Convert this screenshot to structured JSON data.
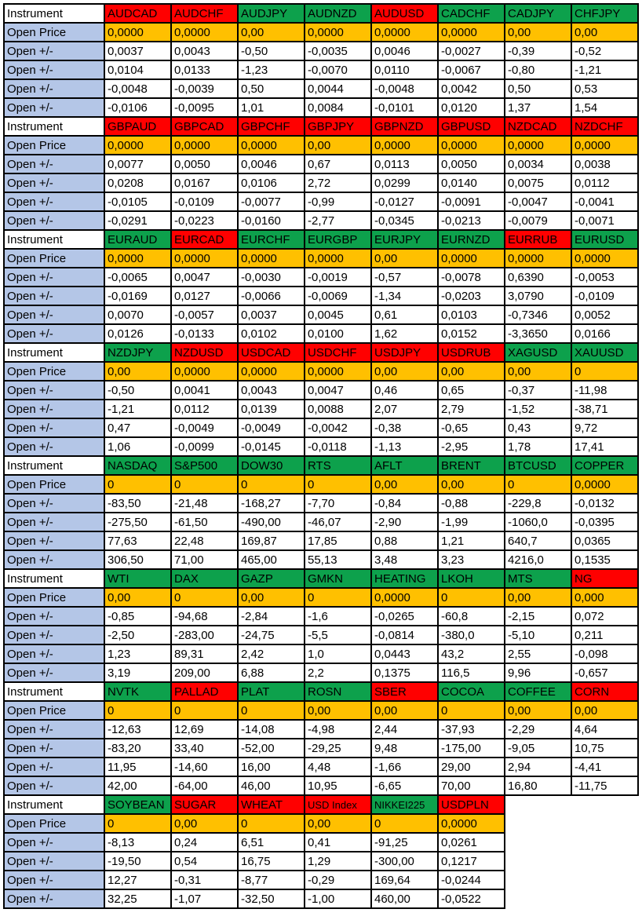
{
  "table": {
    "corner_label": "Instrument",
    "row_labels": {
      "open_price": "Open Price",
      "open_change": "Open +/-"
    },
    "colors": {
      "red": "#FF0000",
      "green": "#0DA14C",
      "orange": "#FFC000",
      "label_blue": "#B4C6E7",
      "border": "#000000"
    },
    "blocks": [
      {
        "instruments": [
          {
            "name": "AUDCAD",
            "color": "red"
          },
          {
            "name": "AUDCHF",
            "color": "red"
          },
          {
            "name": "AUDJPY",
            "color": "green"
          },
          {
            "name": "AUDNZD",
            "color": "green"
          },
          {
            "name": "AUDUSD",
            "color": "red"
          },
          {
            "name": "CADCHF",
            "color": "green"
          },
          {
            "name": "CADJPY",
            "color": "green"
          },
          {
            "name": "CHFJPY",
            "color": "green"
          }
        ],
        "open_price": [
          "0,0000",
          "0,0000",
          "0,00",
          "0,0000",
          "0,0000",
          "0,0000",
          "0,00",
          "0,00"
        ],
        "changes": [
          [
            "0,0037",
            "0,0043",
            "-0,50",
            "-0,0035",
            "0,0046",
            "-0,0027",
            "-0,39",
            "-0,52"
          ],
          [
            "0,0104",
            "0,0133",
            "-1,23",
            "-0,0070",
            "0,0110",
            "-0,0067",
            "-0,80",
            "-1,21"
          ],
          [
            "-0,0048",
            "-0,0039",
            "0,50",
            "0,0044",
            "-0,0048",
            "0,0042",
            "0,50",
            "0,53"
          ],
          [
            "-0,0106",
            "-0,0095",
            "1,01",
            "0,0084",
            "-0,0101",
            "0,0120",
            "1,37",
            "1,54"
          ]
        ]
      },
      {
        "instruments": [
          {
            "name": "GBPAUD",
            "color": "red"
          },
          {
            "name": "GBPCAD",
            "color": "red"
          },
          {
            "name": "GBPCHF",
            "color": "red"
          },
          {
            "name": "GBPJPY",
            "color": "red"
          },
          {
            "name": "GBPNZD",
            "color": "red"
          },
          {
            "name": "GBPUSD",
            "color": "red"
          },
          {
            "name": "NZDCAD",
            "color": "red"
          },
          {
            "name": "NZDCHF",
            "color": "red"
          }
        ],
        "open_price": [
          "0,0000",
          "0,0000",
          "0,0000",
          "0,00",
          "0,0000",
          "0,0000",
          "0,0000",
          "0,0000"
        ],
        "changes": [
          [
            "0,0077",
            "0,0050",
            "0,0046",
            "0,67",
            "0,0113",
            "0,0050",
            "0,0034",
            "0,0038"
          ],
          [
            "0,0208",
            "0,0167",
            "0,0106",
            "2,72",
            "0,0299",
            "0,0140",
            "0,0075",
            "0,0112"
          ],
          [
            "-0,0105",
            "-0,0109",
            "-0,0077",
            "-0,99",
            "-0,0127",
            "-0,0091",
            "-0,0047",
            "-0,0041"
          ],
          [
            "-0,0291",
            "-0,0223",
            "-0,0160",
            "-2,77",
            "-0,0345",
            "-0,0213",
            "-0,0079",
            "-0,0071"
          ]
        ]
      },
      {
        "instruments": [
          {
            "name": "EURAUD",
            "color": "green"
          },
          {
            "name": "EURCAD",
            "color": "red"
          },
          {
            "name": "EURCHF",
            "color": "green"
          },
          {
            "name": "EURGBP",
            "color": "green"
          },
          {
            "name": "EURJPY",
            "color": "green"
          },
          {
            "name": "EURNZD",
            "color": "green"
          },
          {
            "name": "EURRUB",
            "color": "red"
          },
          {
            "name": "EURUSD",
            "color": "green"
          }
        ],
        "open_price": [
          "0,0000",
          "0,0000",
          "0,0000",
          "0,0000",
          "0,00",
          "0,0000",
          "0,0000",
          "0,0000"
        ],
        "changes": [
          [
            "-0,0065",
            "0,0047",
            "-0,0030",
            "-0,0019",
            "-0,57",
            "-0,0078",
            "0,6390",
            "-0,0053"
          ],
          [
            "-0,0169",
            "0,0127",
            "-0,0066",
            "-0,0069",
            "-1,34",
            "-0,0203",
            "3,0790",
            "-0,0109"
          ],
          [
            "0,0070",
            "-0,0057",
            "0,0037",
            "0,0045",
            "0,61",
            "0,0103",
            "-0,7346",
            "0,0052"
          ],
          [
            "0,0126",
            "-0,0133",
            "0,0102",
            "0,0100",
            "1,62",
            "0,0152",
            "-3,3650",
            "0,0166"
          ]
        ]
      },
      {
        "instruments": [
          {
            "name": "NZDJPY",
            "color": "green"
          },
          {
            "name": "NZDUSD",
            "color": "red"
          },
          {
            "name": "USDCAD",
            "color": "red"
          },
          {
            "name": "USDCHF",
            "color": "red"
          },
          {
            "name": "USDJPY",
            "color": "red"
          },
          {
            "name": "USDRUB",
            "color": "red"
          },
          {
            "name": "XAGUSD",
            "color": "green"
          },
          {
            "name": "XAUUSD",
            "color": "green"
          }
        ],
        "open_price": [
          "0,00",
          "0,0000",
          "0,0000",
          "0,0000",
          "0,00",
          "0,00",
          "0,00",
          "0"
        ],
        "changes": [
          [
            "-0,50",
            "0,0041",
            "0,0043",
            "0,0047",
            "0,46",
            "0,65",
            "-0,37",
            "-11,98"
          ],
          [
            "-1,21",
            "0,0112",
            "0,0139",
            "0,0088",
            "2,07",
            "2,79",
            "-1,52",
            "-38,71"
          ],
          [
            "0,47",
            "-0,0049",
            "-0,0049",
            "-0,0042",
            "-0,38",
            "-0,65",
            "0,43",
            "9,72"
          ],
          [
            "1,06",
            "-0,0099",
            "-0,0145",
            "-0,0118",
            "-1,13",
            "-2,95",
            "1,78",
            "17,41"
          ]
        ]
      },
      {
        "instruments": [
          {
            "name": "NASDAQ",
            "color": "green"
          },
          {
            "name": "S&P500",
            "color": "green"
          },
          {
            "name": "DOW30",
            "color": "green"
          },
          {
            "name": "RTS",
            "color": "green"
          },
          {
            "name": "AFLT",
            "color": "green"
          },
          {
            "name": "BRENT",
            "color": "green"
          },
          {
            "name": "BTCUSD",
            "color": "green"
          },
          {
            "name": "COPPER",
            "color": "green"
          }
        ],
        "open_price": [
          "0",
          "0",
          "0",
          "0",
          "0,00",
          "0,00",
          "0",
          "0,0000"
        ],
        "changes": [
          [
            "-83,50",
            "-21,48",
            "-168,27",
            "-7,70",
            "-0,84",
            "-0,88",
            "-229,8",
            "-0,0132"
          ],
          [
            "-275,50",
            "-61,50",
            "-490,00",
            "-46,07",
            "-2,90",
            "-1,99",
            "-1060,0",
            "-0,0395"
          ],
          [
            "77,63",
            "22,48",
            "169,87",
            "17,85",
            "0,88",
            "1,21",
            "640,7",
            "0,0365"
          ],
          [
            "306,50",
            "71,00",
            "465,00",
            "55,13",
            "3,48",
            "3,23",
            "4216,0",
            "0,1535"
          ]
        ]
      },
      {
        "instruments": [
          {
            "name": "WTI",
            "color": "green"
          },
          {
            "name": "DAX",
            "color": "green"
          },
          {
            "name": "GAZP",
            "color": "green"
          },
          {
            "name": "GMKN",
            "color": "green"
          },
          {
            "name": "HEATING",
            "color": "green"
          },
          {
            "name": "LKOH",
            "color": "green"
          },
          {
            "name": "MTS",
            "color": "green"
          },
          {
            "name": "NG",
            "color": "red"
          }
        ],
        "open_price": [
          "0,00",
          "0",
          "0,00",
          "0",
          "0,0000",
          "0",
          "0,00",
          "0,000"
        ],
        "changes": [
          [
            "-0,85",
            "-94,68",
            "-2,84",
            "-1,6",
            "-0,0265",
            "-60,8",
            "-2,15",
            "0,072"
          ],
          [
            "-2,50",
            "-283,00",
            "-24,75",
            "-5,5",
            "-0,0814",
            "-380,0",
            "-5,10",
            "0,211"
          ],
          [
            "1,23",
            "89,31",
            "2,42",
            "1,0",
            "0,0443",
            "43,2",
            "2,55",
            "-0,098"
          ],
          [
            "3,19",
            "209,00",
            "6,88",
            "2,2",
            "0,1375",
            "116,5",
            "9,96",
            "-0,657"
          ]
        ]
      },
      {
        "instruments": [
          {
            "name": "NVTK",
            "color": "green"
          },
          {
            "name": "PALLAD",
            "color": "red"
          },
          {
            "name": "PLAT",
            "color": "green"
          },
          {
            "name": "ROSN",
            "color": "green"
          },
          {
            "name": "SBER",
            "color": "red"
          },
          {
            "name": "COCOA",
            "color": "green"
          },
          {
            "name": "COFFEE",
            "color": "green"
          },
          {
            "name": "CORN",
            "color": "red"
          }
        ],
        "open_price": [
          "0",
          "0",
          "0",
          "0,00",
          "0,00",
          "0",
          "0,00",
          "0,00"
        ],
        "changes": [
          [
            "-12,63",
            "12,69",
            "-14,08",
            "-4,98",
            "2,44",
            "-37,93",
            "-2,29",
            "4,64"
          ],
          [
            "-83,20",
            "33,40",
            "-52,00",
            "-29,25",
            "9,48",
            "-175,00",
            "-9,05",
            "10,75"
          ],
          [
            "11,95",
            "-14,60",
            "16,00",
            "4,48",
            "-1,66",
            "29,00",
            "2,94",
            "-4,41"
          ],
          [
            "42,00",
            "-64,00",
            "46,00",
            "10,95",
            "-6,65",
            "70,00",
            "16,80",
            "-11,75"
          ]
        ]
      },
      {
        "instruments": [
          {
            "name": "SOYBEAN",
            "color": "green"
          },
          {
            "name": "SUGAR",
            "color": "red"
          },
          {
            "name": "WHEAT",
            "color": "red"
          },
          {
            "name": "USD Index",
            "color": "red"
          },
          {
            "name": "NIKKEI225",
            "color": "green"
          },
          {
            "name": "USDPLN",
            "color": "red"
          }
        ],
        "open_price": [
          "0",
          "0,00",
          "0",
          "0,00",
          "0",
          "0,0000"
        ],
        "changes": [
          [
            "-8,13",
            "0,24",
            "6,51",
            "0,41",
            "-91,25",
            "0,0261"
          ],
          [
            "-19,50",
            "0,54",
            "16,75",
            "1,29",
            "-300,00",
            "0,1217"
          ],
          [
            "12,27",
            "-0,31",
            "-8,77",
            "-0,29",
            "169,64",
            "-0,0244"
          ],
          [
            "32,25",
            "-1,07",
            "-32,50",
            "-1,00",
            "460,00",
            "-0,0522"
          ]
        ]
      }
    ]
  }
}
